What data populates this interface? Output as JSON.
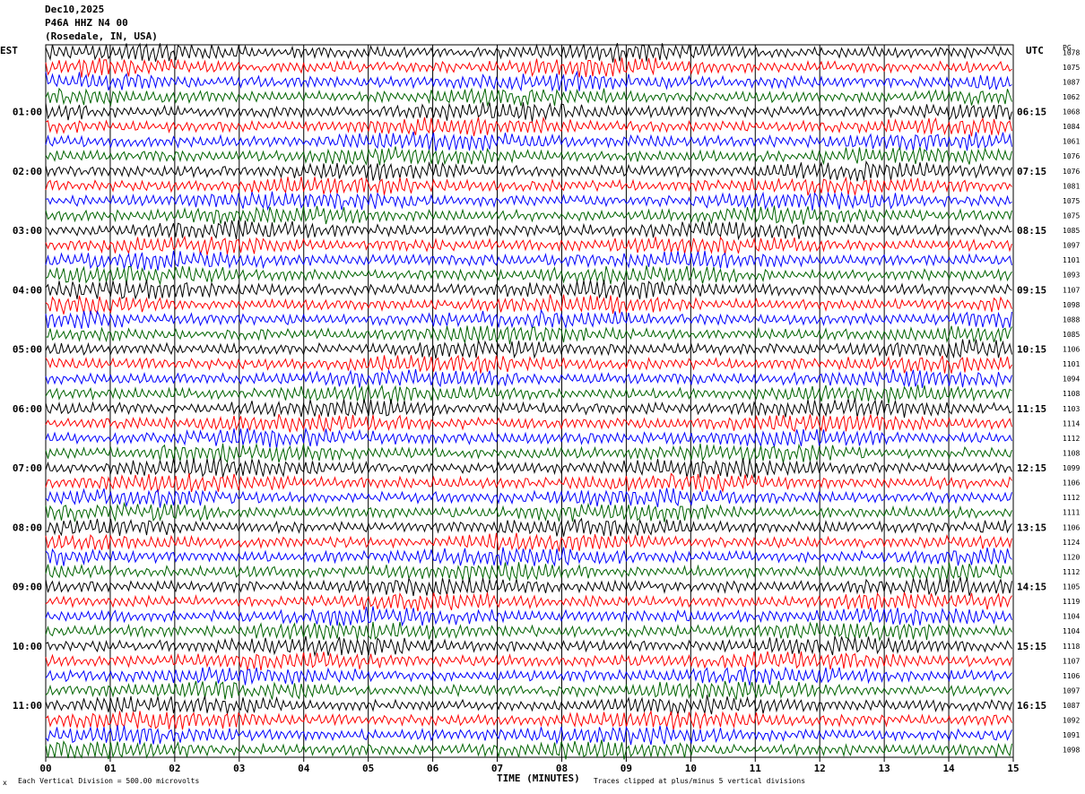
{
  "header": {
    "date": "Dec10,2025",
    "station": "P46A HHZ N4 00",
    "location": "(Rosedale, IN, USA)"
  },
  "left_tz": "EST",
  "right_tz": "UTC",
  "right_col_label": "PG",
  "footer": {
    "scale": "Each Vertical Division =  500.00 microvolts",
    "clip": "Traces clipped at plus/minus 5 vertical divisions",
    "corner": "x"
  },
  "chart_data": {
    "type": "line",
    "title": "",
    "xlabel": "TIME (MINUTES)",
    "ylabel": "",
    "xlim": [
      0,
      15
    ],
    "x_ticks": [
      "00",
      "01",
      "02",
      "03",
      "04",
      "05",
      "06",
      "07",
      "08",
      "09",
      "10",
      "11",
      "12",
      "13",
      "14",
      "15"
    ],
    "grid": true,
    "series_colors": [
      "#000000",
      "#ff0000",
      "#0000ff",
      "#006400"
    ],
    "left_hour_labels": [
      "01:00",
      "02:00",
      "03:00",
      "04:00",
      "05:00",
      "06:00",
      "07:00",
      "08:00",
      "09:00",
      "10:00",
      "11:00"
    ],
    "right_hour_labels": [
      "06:15",
      "07:15",
      "08:15",
      "09:15",
      "10:15",
      "11:15",
      "12:15",
      "13:15",
      "14:15",
      "15:15",
      "16:15"
    ],
    "row_values": [
      "1078",
      "1075",
      "1087",
      "1062",
      "1068",
      "1084",
      "1061",
      "1076",
      "1076",
      "1081",
      "1075",
      "1075",
      "1085",
      "1097",
      "1101",
      "1093",
      "1107",
      "1098",
      "1088",
      "1085",
      "1106",
      "1101",
      "1094",
      "1108",
      "1103",
      "1114",
      "1112",
      "1108",
      "1099",
      "1106",
      "1112",
      "1111",
      "1106",
      "1124",
      "1120",
      "1112",
      "1105",
      "1119",
      "1104",
      "1104",
      "1118",
      "1107",
      "1106",
      "1097",
      "1087",
      "1092",
      "1091",
      "1098"
    ]
  }
}
